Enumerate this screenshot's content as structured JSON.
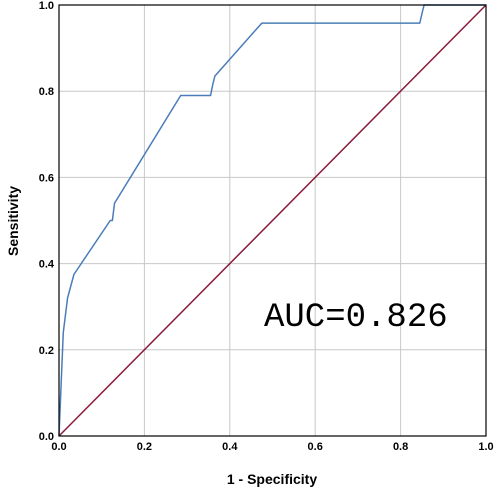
{
  "chart_data": {
    "type": "line",
    "title": "",
    "xlabel": "1 - Specificity",
    "ylabel": "Sensitivity",
    "xlim": [
      0,
      1
    ],
    "ylim": [
      0,
      1
    ],
    "xticks": [
      "0.0",
      "0.2",
      "0.4",
      "0.6",
      "0.8",
      "1.0"
    ],
    "yticks": [
      "0.0",
      "0.2",
      "0.4",
      "0.6",
      "0.8",
      "1.0"
    ],
    "grid": true,
    "legend": "none",
    "annotation": "AUC=0.826",
    "colors": {
      "roc_curve": "#4a7db8",
      "reference_line": "#8b1a3a",
      "grid": "#c8c8c8",
      "frame": "#000000"
    },
    "series": [
      {
        "x": [
          0,
          0.005,
          0.01,
          0.02,
          0.035,
          0.12,
          0.125,
          0.13,
          0.285,
          0.355,
          0.36,
          0.365,
          0.475,
          0.845,
          0.85,
          0.855,
          1.0
        ],
        "y": [
          0,
          0.12,
          0.24,
          0.32,
          0.375,
          0.5,
          0.5,
          0.54,
          0.79,
          0.79,
          0.815,
          0.835,
          0.958,
          0.958,
          0.98,
          1.0,
          1.0
        ]
      },
      {
        "x": [
          0,
          1
        ],
        "y": [
          0,
          1
        ]
      }
    ]
  }
}
